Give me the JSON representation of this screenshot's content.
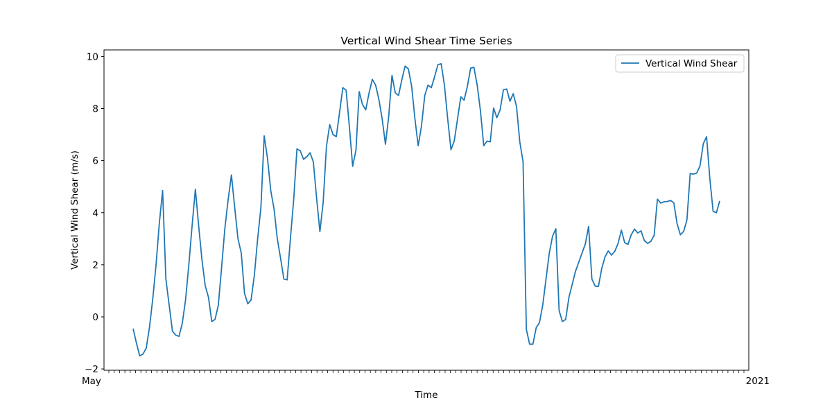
{
  "chart_data": {
    "type": "line",
    "title": "Vertical Wind Shear Time Series",
    "xlabel": "Time",
    "ylabel": "Vertical Wind Shear (m/s)",
    "ylim": [
      -2.05,
      10.25
    ],
    "yticks": [
      -2,
      0,
      2,
      4,
      6,
      8,
      10
    ],
    "ytick_labels": [
      "−2",
      "0",
      "2",
      "4",
      "6",
      "8",
      "10"
    ],
    "grid": false,
    "legend_position": "top-right",
    "x_tick_labels_note": "dense overlapping date labels",
    "x_first_label": "May",
    "x_last_label": "2021",
    "series": [
      {
        "name": "Vertical Wind Shear",
        "color": "#1f77b4",
        "values": [
          -0.45,
          -1.0,
          -1.5,
          -1.43,
          -1.2,
          -0.4,
          0.7,
          2.0,
          3.6,
          4.85,
          1.45,
          0.45,
          -0.55,
          -0.7,
          -0.75,
          -0.25,
          0.65,
          2.0,
          3.5,
          4.9,
          3.5,
          2.2,
          1.2,
          0.75,
          -0.18,
          -0.1,
          0.45,
          1.9,
          3.4,
          4.5,
          5.45,
          4.2,
          3.0,
          2.45,
          0.9,
          0.5,
          0.65,
          1.6,
          3.0,
          4.2,
          6.95,
          6.1,
          4.85,
          4.15,
          3.0,
          2.25,
          1.45,
          1.42,
          3.0,
          4.5,
          6.45,
          6.38,
          6.05,
          6.15,
          6.3,
          5.95,
          4.55,
          3.27,
          4.4,
          6.55,
          7.38,
          7.0,
          6.92,
          7.85,
          8.8,
          8.7,
          7.3,
          5.78,
          6.4,
          8.65,
          8.15,
          7.95,
          8.6,
          9.12,
          8.9,
          8.35,
          7.6,
          6.63,
          7.7,
          9.27,
          8.6,
          8.5,
          9.1,
          9.63,
          9.52,
          8.85,
          7.6,
          6.57,
          7.33,
          8.5,
          8.9,
          8.8,
          9.22,
          9.68,
          9.72,
          8.9,
          7.6,
          6.42,
          6.75,
          7.6,
          8.45,
          8.32,
          8.85,
          9.55,
          9.58,
          8.9,
          7.9,
          6.57,
          6.75,
          6.72,
          8.02,
          7.65,
          7.95,
          8.72,
          8.75,
          8.28,
          8.57,
          8.08,
          6.72,
          5.95,
          -0.48,
          -1.05,
          -1.05,
          -0.42,
          -0.22,
          0.45,
          1.45,
          2.45,
          3.1,
          3.38,
          0.24,
          -0.18,
          -0.1,
          0.75,
          1.25,
          1.75,
          2.1,
          2.45,
          2.8,
          3.47,
          1.45,
          1.18,
          1.17,
          1.85,
          2.3,
          2.53,
          2.37,
          2.52,
          2.82,
          3.33,
          2.85,
          2.78,
          3.15,
          3.37,
          3.22,
          3.3,
          2.93,
          2.82,
          2.9,
          3.13,
          4.52,
          4.37,
          4.42,
          4.43,
          4.47,
          4.38,
          3.58,
          3.15,
          3.28,
          3.72,
          5.5,
          5.48,
          5.52,
          5.8,
          6.65,
          6.92,
          5.3,
          4.05,
          4.0,
          4.45
        ]
      }
    ]
  }
}
